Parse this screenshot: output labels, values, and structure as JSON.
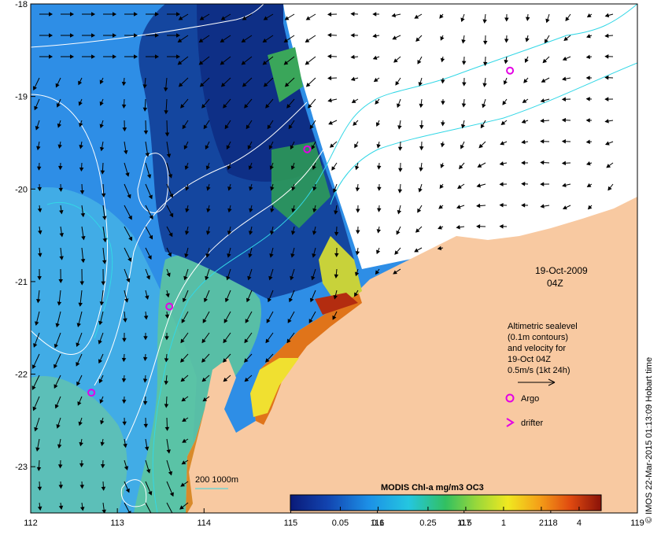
{
  "map": {
    "lon_range": [
      112,
      119
    ],
    "lat_range": [
      -23.5,
      -18
    ],
    "lon_ticks": [
      "112",
      "113",
      "114",
      "115",
      "116",
      "117",
      "118",
      "119"
    ],
    "lat_ticks": [
      "-18",
      "-19",
      "-20",
      "-21",
      "-22",
      "-23"
    ]
  },
  "annotations": {
    "date": "19-Oct-2009",
    "time": "04Z",
    "legend_lines": [
      "Altimetric sealevel",
      "(0.1m contours)",
      "and velocity for",
      "19-Oct 04Z",
      "0.5m/s (1kt 24h)"
    ],
    "argo_label": "Argo",
    "drifter_label": "drifter",
    "depth_label": "200  1000m",
    "credit": "© IMOS 22-Mar-2015 01:13:09 Hobart time"
  },
  "colorbar": {
    "title": "MODIS Chl-a mg/m3 OC3",
    "ticks": [
      "0.05",
      "0.1",
      "0.25",
      "0.5",
      "1",
      "2",
      "4"
    ]
  },
  "argo_floats": [
    {
      "lon": 117.53,
      "lat": -18.72
    },
    {
      "lon": 115.19,
      "lat": -19.57
    },
    {
      "lon": 113.6,
      "lat": -21.27
    },
    {
      "lon": 112.7,
      "lat": -22.2
    }
  ],
  "colors": {
    "land": "#f8c9a1",
    "deep_ocean": "#1a56b8",
    "offshore_blue": "#2e8ee6",
    "shelf_cyan": "#5dc8e2",
    "bloom_green": "#52c35f",
    "contour": "#ffffff",
    "isobath": "#33d7e6",
    "argo": "#e400e4"
  }
}
